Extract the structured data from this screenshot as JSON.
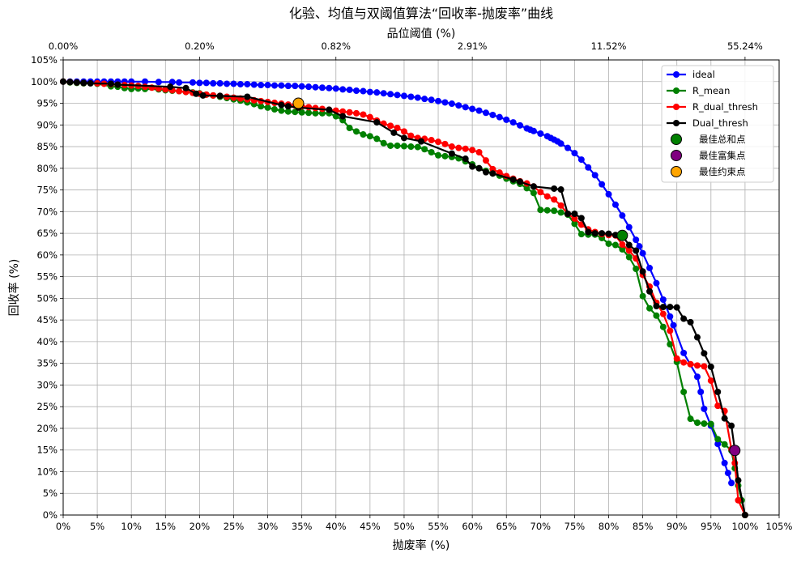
{
  "chart_data": {
    "type": "line",
    "title": "化验、均值与双阈值算法“回收率-抛废率”曲线",
    "xlabel": "抛废率 (%)",
    "ylabel": "回收率 (%)",
    "top_xlabel": "品位阈值 (%)",
    "xlim": [
      0,
      105
    ],
    "ylim": [
      0,
      105
    ],
    "x_ticks": [
      0,
      5,
      10,
      15,
      20,
      25,
      30,
      35,
      40,
      45,
      50,
      55,
      60,
      65,
      70,
      75,
      80,
      85,
      90,
      95,
      100,
      105
    ],
    "x_tick_labels": [
      "0%",
      "5%",
      "10%",
      "15%",
      "20%",
      "25%",
      "30%",
      "35%",
      "40%",
      "45%",
      "50%",
      "55%",
      "60%",
      "65%",
      "70%",
      "75%",
      "80%",
      "85%",
      "90%",
      "95%",
      "100%",
      "105%"
    ],
    "y_ticks": [
      0,
      5,
      10,
      15,
      20,
      25,
      30,
      35,
      40,
      45,
      50,
      55,
      60,
      65,
      70,
      75,
      80,
      85,
      90,
      95,
      100,
      105
    ],
    "y_tick_labels": [
      "0%",
      "5%",
      "10%",
      "15%",
      "20%",
      "25%",
      "30%",
      "35%",
      "40%",
      "45%",
      "50%",
      "55%",
      "60%",
      "65%",
      "70%",
      "75%",
      "80%",
      "85%",
      "90%",
      "95%",
      "100%",
      "105%"
    ],
    "top_ticks": [
      {
        "x": 0,
        "label": "0.00%"
      },
      {
        "x": 20,
        "label": "0.20%"
      },
      {
        "x": 40,
        "label": "0.82%"
      },
      {
        "x": 60,
        "label": "2.91%"
      },
      {
        "x": 80,
        "label": "11.52%"
      },
      {
        "x": 100,
        "label": "55.24%"
      }
    ],
    "grid": true,
    "legend_position": "top-right",
    "series": [
      {
        "name": "ideal",
        "color": "#0000ff",
        "x": [
          0,
          1,
          2,
          3,
          4,
          5,
          6,
          7,
          8,
          9,
          10,
          12,
          14,
          16,
          17,
          19,
          20,
          21,
          22,
          23,
          24,
          25,
          26,
          27,
          28,
          29,
          30,
          31,
          32,
          33,
          34,
          35,
          36,
          37,
          38,
          39,
          40,
          41,
          42,
          43,
          44,
          45,
          46,
          47,
          48,
          49,
          50,
          51,
          52,
          53,
          54,
          55,
          56,
          57,
          58,
          59,
          60,
          61,
          62,
          63,
          64,
          65,
          66,
          67,
          68,
          68.5,
          69,
          70,
          71,
          71.5,
          72,
          72.5,
          73,
          74,
          75,
          76,
          77,
          78,
          79,
          80,
          81,
          82,
          83,
          84,
          84.5,
          85,
          86,
          87,
          88,
          89,
          89.5,
          91,
          93,
          93.5,
          94,
          95,
          96,
          97,
          97.5,
          98
        ],
        "y": [
          100,
          100,
          100,
          100,
          100,
          100,
          100,
          100,
          100,
          100,
          100,
          100,
          99.9,
          99.9,
          99.8,
          99.8,
          99.7,
          99.7,
          99.6,
          99.6,
          99.5,
          99.5,
          99.4,
          99.4,
          99.3,
          99.2,
          99.2,
          99.1,
          99.1,
          99.0,
          99.0,
          98.9,
          98.8,
          98.7,
          98.6,
          98.5,
          98.4,
          98.2,
          98.1,
          97.9,
          97.8,
          97.6,
          97.5,
          97.3,
          97.1,
          96.9,
          96.7,
          96.5,
          96.3,
          96.0,
          95.8,
          95.5,
          95.2,
          94.9,
          94.5,
          94.1,
          93.7,
          93.3,
          92.8,
          92.3,
          91.8,
          91.2,
          90.6,
          89.9,
          89.2,
          88.9,
          88.6,
          88.0,
          87.4,
          87.0,
          86.6,
          86.2,
          85.7,
          84.7,
          83.5,
          82.0,
          80.2,
          78.4,
          76.3,
          74.0,
          71.6,
          69.1,
          66.4,
          63.5,
          62.0,
          60.4,
          57.0,
          53.5,
          49.7,
          45.8,
          43.8,
          37.4,
          31.9,
          28.4,
          24.5,
          20.6,
          16.4,
          12.0,
          9.7,
          7.4
        ]
      },
      {
        "name": "R_mean",
        "color": "#008000",
        "x": [
          0,
          1,
          2,
          3,
          5,
          7,
          8,
          9,
          10,
          11,
          12,
          14,
          15,
          16,
          17,
          18,
          19,
          20,
          21,
          22,
          23,
          24,
          25,
          26,
          27,
          28,
          29,
          30,
          31,
          32,
          33,
          34,
          35,
          36,
          37,
          38,
          39,
          40,
          41,
          42,
          43,
          44,
          45,
          46,
          47,
          48,
          49,
          50,
          51,
          52,
          53,
          54,
          55,
          56,
          57,
          58,
          59,
          60,
          61,
          62,
          63,
          64,
          65,
          66,
          67,
          68,
          69,
          70,
          71,
          72,
          73,
          74,
          75,
          76,
          77,
          78,
          79,
          80,
          81,
          82,
          83,
          84,
          85,
          86,
          87,
          88,
          89,
          90,
          91,
          92,
          93,
          94,
          95,
          96,
          97,
          98,
          98.5,
          99,
          99.5,
          100
        ],
        "y": [
          100,
          99.8,
          99.7,
          99.6,
          99.5,
          98.9,
          98.8,
          98.5,
          98.3,
          98.4,
          98.3,
          98.2,
          98.0,
          97.9,
          97.8,
          97.6,
          97.5,
          97.3,
          97.0,
          96.8,
          96.5,
          96.2,
          95.9,
          95.6,
          95.2,
          94.8,
          94.3,
          94.0,
          93.6,
          93.3,
          93.1,
          93.0,
          92.9,
          92.8,
          92.7,
          92.7,
          92.7,
          92.0,
          91.1,
          89.3,
          88.5,
          87.8,
          87.4,
          86.8,
          85.8,
          85.2,
          85.2,
          85.1,
          85.0,
          84.9,
          84.4,
          83.7,
          83.0,
          82.8,
          82.6,
          82.3,
          81.6,
          80.9,
          80.0,
          79.4,
          78.8,
          78.3,
          77.6,
          77.0,
          76.4,
          75.4,
          74.3,
          70.4,
          70.3,
          70.2,
          69.8,
          69.3,
          67.2,
          64.8,
          64.7,
          64.7,
          63.9,
          62.6,
          62.3,
          61.3,
          59.5,
          56.8,
          50.5,
          47.7,
          46.0,
          43.4,
          39.4,
          35.3,
          28.4,
          22.2,
          21.3,
          21.1,
          21.0,
          17.5,
          16.3,
          14.9,
          10.8,
          6.8,
          3.4,
          0
        ]
      },
      {
        "name": "R_dual_thresh",
        "color": "#ff0000",
        "x": [
          0,
          1,
          2,
          3,
          5,
          6,
          7,
          8,
          9,
          10,
          11,
          12,
          13,
          14,
          15,
          16,
          17,
          18,
          19,
          20,
          21,
          22,
          23,
          24,
          25,
          26,
          27,
          28,
          29,
          30,
          31,
          32,
          33,
          34,
          35,
          36,
          37,
          38,
          39,
          40,
          41,
          42,
          43,
          44,
          45,
          46,
          47,
          48,
          49,
          50,
          51,
          52,
          53,
          54,
          55,
          56,
          57,
          58,
          59,
          60,
          61,
          62,
          63,
          64,
          65,
          66,
          67,
          68,
          69,
          70,
          71,
          72,
          73,
          74,
          75,
          76,
          77,
          78,
          79,
          80,
          81,
          82,
          83,
          84,
          85,
          86,
          87,
          88,
          89,
          90,
          91,
          92,
          93,
          94,
          95,
          96,
          97,
          98,
          98.5,
          99,
          100
        ],
        "y": [
          100,
          99.9,
          99.8,
          99.7,
          99.6,
          99.5,
          99.4,
          99.3,
          99.2,
          99.1,
          99.0,
          98.8,
          98.6,
          98.4,
          98.2,
          98.0,
          97.8,
          97.6,
          97.4,
          97.2,
          97.0,
          96.8,
          96.7,
          96.5,
          96.3,
          96.1,
          95.9,
          95.7,
          95.5,
          95.3,
          95.1,
          94.9,
          94.7,
          94.5,
          94.3,
          94.1,
          93.9,
          93.7,
          93.5,
          93.3,
          93.1,
          92.9,
          92.7,
          92.4,
          91.8,
          91.0,
          90.3,
          89.8,
          89.3,
          88.5,
          87.5,
          87.0,
          86.8,
          86.5,
          86.1,
          85.6,
          85.0,
          84.7,
          84.5,
          84.2,
          83.7,
          81.8,
          79.8,
          79.0,
          78.2,
          77.6,
          77.0,
          76.5,
          75.8,
          74.5,
          73.5,
          72.8,
          71.4,
          69.5,
          68.4,
          67.0,
          65.9,
          65.3,
          64.8,
          64.6,
          64.5,
          62.4,
          61.0,
          59.2,
          55.4,
          52.7,
          49.0,
          46.4,
          42.5,
          36.1,
          35.2,
          34.8,
          34.5,
          34.3,
          31.0,
          25.2,
          24.0,
          15.2,
          12.0,
          3.4,
          0
        ]
      },
      {
        "name": "Dual_thresh",
        "color": "#000000",
        "x": [
          0,
          1,
          2,
          3,
          4,
          7,
          8,
          15.7,
          18,
          19.5,
          20.5,
          23,
          27,
          32,
          33,
          34.5,
          39,
          41,
          46,
          48.5,
          50,
          52.5,
          57,
          59,
          60,
          61,
          62,
          63,
          66,
          67,
          69,
          72,
          73,
          74,
          75,
          76,
          77,
          78,
          79,
          80,
          81,
          82,
          83,
          84,
          85,
          86,
          87,
          88,
          89,
          90,
          91,
          92,
          93,
          94,
          95,
          96,
          97,
          98,
          98.5,
          99,
          100
        ],
        "y": [
          100,
          99.9,
          99.8,
          99.7,
          99.6,
          99.5,
          99.3,
          98.8,
          98.5,
          97.2,
          96.8,
          96.7,
          96.5,
          94.6,
          94.3,
          94.0,
          93.5,
          92.0,
          90.6,
          88.2,
          87.0,
          86.2,
          83.4,
          82.2,
          80.4,
          80.0,
          79.1,
          78.8,
          77.4,
          76.9,
          75.8,
          75.3,
          75.1,
          69.5,
          69.5,
          68.5,
          65.3,
          65.0,
          65.0,
          64.9,
          64.6,
          64.4,
          62.3,
          61.0,
          56.2,
          51.6,
          48.2,
          48.0,
          48.0,
          47.9,
          45.3,
          44.5,
          41.0,
          37.3,
          34.2,
          28.4,
          22.3,
          20.6,
          15.0,
          8.0,
          0
        ]
      }
    ],
    "special_points": [
      {
        "name": "最佳总和点",
        "color": "#008000",
        "x": 82.0,
        "y": 64.5
      },
      {
        "name": "最佳富集点",
        "color": "#800080",
        "x": 98.5,
        "y": 14.9
      },
      {
        "name": "最佳约束点",
        "color": "#ffa500",
        "x": 34.5,
        "y": 95.0
      }
    ]
  }
}
